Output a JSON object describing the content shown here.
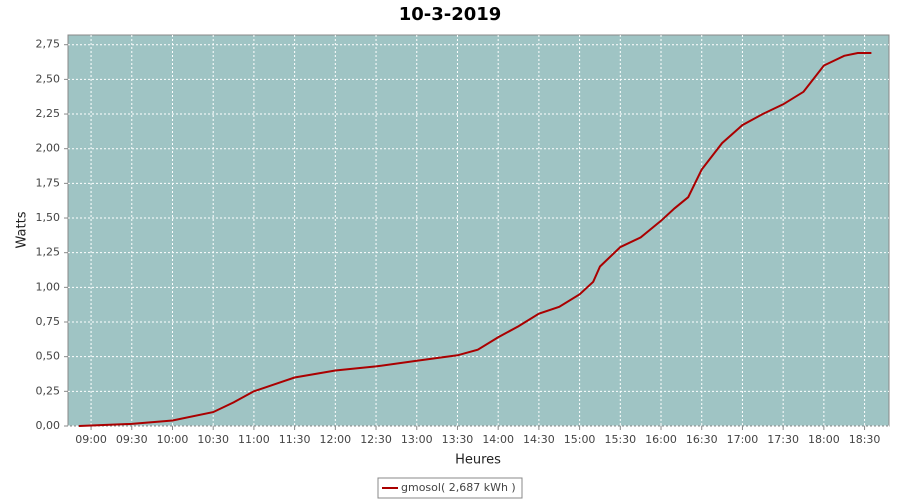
{
  "chart_data": {
    "type": "line",
    "title": "10-3-2019",
    "x_label": "Heures",
    "y_label": "Watts",
    "x": [
      "08:51",
      "09:30",
      "10:00",
      "10:30",
      "10:45",
      "11:00",
      "11:30",
      "12:00",
      "12:30",
      "13:00",
      "13:30",
      "13:45",
      "14:00",
      "14:15",
      "14:30",
      "14:45",
      "15:00",
      "15:10",
      "15:15",
      "15:30",
      "15:45",
      "16:00",
      "16:10",
      "16:20",
      "16:30",
      "16:45",
      "17:00",
      "17:15",
      "17:30",
      "17:45",
      "18:00",
      "18:15",
      "18:25",
      "18:35"
    ],
    "series": [
      {
        "name": "gmosol( 2,687 kWh )",
        "color": "#aa0000",
        "values": [
          0,
          0.015,
          0.04,
          0.1,
          0.17,
          0.25,
          0.35,
          0.4,
          0.43,
          0.47,
          0.51,
          0.55,
          0.64,
          0.72,
          0.81,
          0.86,
          0.95,
          1.04,
          1.15,
          1.29,
          1.36,
          1.48,
          1.57,
          1.65,
          1.85,
          2.04,
          2.17,
          2.25,
          2.32,
          2.41,
          2.6,
          2.67,
          2.69,
          2.69
        ]
      }
    ],
    "xlim": [
      "08:43",
      "18:48"
    ],
    "xticks": [
      "09:00",
      "09:30",
      "10:00",
      "10:30",
      "11:00",
      "11:30",
      "12:00",
      "12:30",
      "13:00",
      "13:30",
      "14:00",
      "14:30",
      "15:00",
      "15:30",
      "16:00",
      "16:30",
      "17:00",
      "17:30",
      "18:00",
      "18:30"
    ],
    "ylim": [
      0,
      2.82
    ],
    "yticks": [
      {
        "value": 0,
        "label": "0,00"
      },
      {
        "value": 0.25,
        "label": "0,25"
      },
      {
        "value": 0.5,
        "label": "0,50"
      },
      {
        "value": 0.75,
        "label": "0,75"
      },
      {
        "value": 1,
        "label": "1,00"
      },
      {
        "value": 1.25,
        "label": "1,25"
      },
      {
        "value": 1.5,
        "label": "1,50"
      },
      {
        "value": 1.75,
        "label": "1,75"
      },
      {
        "value": 2,
        "label": "2,00"
      },
      {
        "value": 2.25,
        "label": "2,25"
      },
      {
        "value": 2.5,
        "label": "2,50"
      },
      {
        "value": 2.75,
        "label": "2,75"
      }
    ],
    "grid": true,
    "background": "#9fc4c4",
    "legend": "bottom"
  }
}
